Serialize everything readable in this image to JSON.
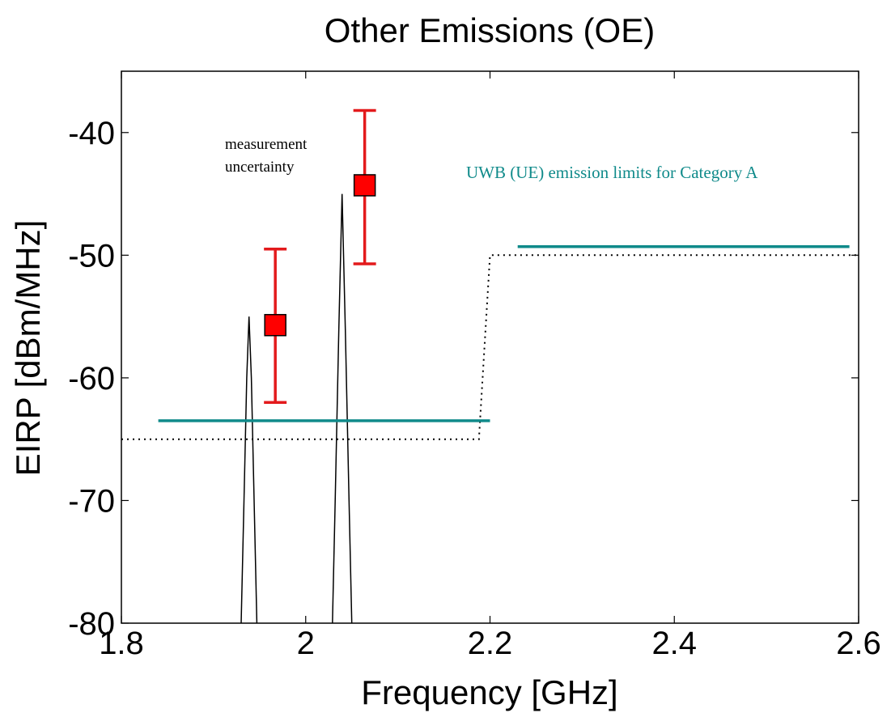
{
  "chart_data": {
    "type": "line",
    "title": "Other Emissions (OE)",
    "xlabel": "Frequency [GHz]",
    "ylabel": "EIRP [dBm/MHz]",
    "xlim": [
      1.8,
      2.6
    ],
    "ylim": [
      -80,
      -35
    ],
    "xticks": [
      1.8,
      2,
      2.2,
      2.4,
      2.6
    ],
    "xtick_labels": [
      "1.8",
      "2",
      "2.2",
      "2.4",
      "2.6"
    ],
    "yticks": [
      -80,
      -70,
      -60,
      -50,
      -40
    ],
    "ytick_labels": [
      "-80",
      "-70",
      "-60",
      "-50",
      "-40"
    ],
    "grid": false,
    "colors": {
      "spectrum": "#000000",
      "limit_dotted": "#000000",
      "limit_solid": "#0f8a8a",
      "marker_fill": "#ff0000",
      "marker_edge": "#000000",
      "errorbar": "#e31a1c"
    },
    "spectrum_peaks": [
      {
        "x": [
          1.93,
          1.933,
          1.936,
          1.9385,
          1.941,
          1.944,
          1.947
        ],
        "y": [
          -80,
          -70,
          -60,
          -55,
          -60,
          -70,
          -80
        ]
      },
      {
        "x": [
          2.029,
          2.032,
          2.036,
          2.0395,
          2.043,
          2.047,
          2.05
        ],
        "y": [
          -80,
          -70,
          -56,
          -45,
          -56,
          -70,
          -80
        ]
      }
    ],
    "limit_dotted": {
      "x": [
        1.8,
        2.188,
        2.2,
        2.6
      ],
      "y": [
        -65,
        -65,
        -50,
        -50
      ]
    },
    "limit_solid_segments": [
      {
        "x": [
          1.84,
          2.2
        ],
        "y": [
          -63.5,
          -63.5
        ]
      },
      {
        "x": [
          2.23,
          2.59
        ],
        "y": [
          -49.3,
          -49.3
        ]
      }
    ],
    "measurements": [
      {
        "x": 1.967,
        "y": -55.7,
        "lower": -62,
        "upper": -49.5
      },
      {
        "x": 2.064,
        "y": -44.3,
        "lower": -50.7,
        "upper": -38.2
      }
    ],
    "annotations": {
      "uncertainty_line1": "measurement",
      "uncertainty_line2": "uncertainty",
      "limits_label": "UWB (UE) emission limits for Category A"
    }
  }
}
